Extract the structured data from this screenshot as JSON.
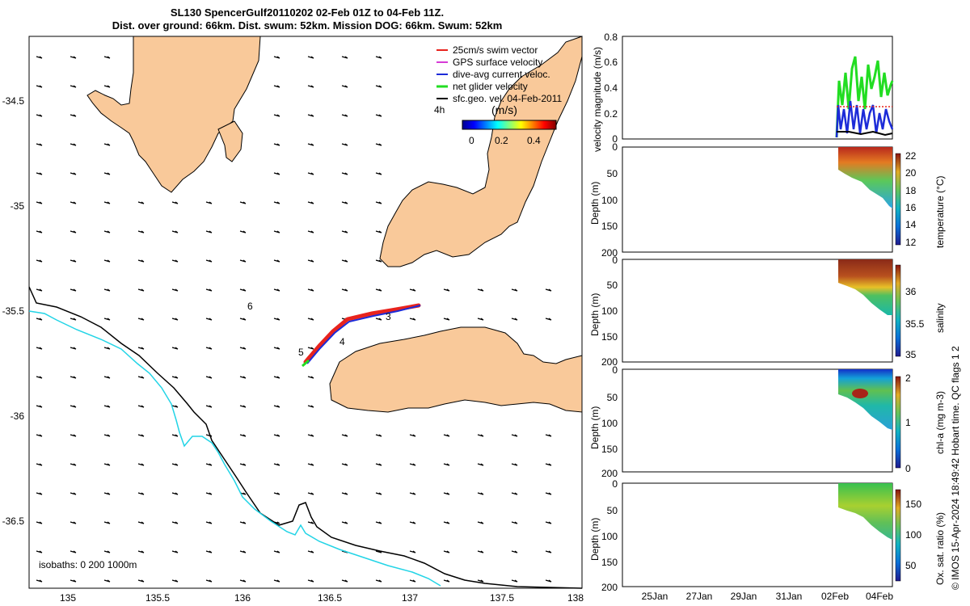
{
  "title": {
    "line1": "SL130 SpencerGulf20110202 02-Feb 01Z to 04-Feb 11Z.",
    "line2": "Dist. over ground: 66km. Dist. swum: 52km. Mission DOG: 66km. Swum: 52km"
  },
  "map": {
    "x_ticks": [
      "135",
      "135.5",
      "136",
      "136.5",
      "137",
      "137.5",
      "138"
    ],
    "y_ticks": [
      "-34.5",
      "-35",
      "-35.5",
      "-36",
      "-36.5"
    ],
    "legend": [
      {
        "label": "25cm/s swim vector",
        "color": "#e8231d"
      },
      {
        "label": "GPS surface velocity",
        "color": "#d63bd6"
      },
      {
        "label": "dive-avg current veloc.",
        "color": "#1c2bd8"
      },
      {
        "label": "net glider velocity",
        "color": "#22dd22"
      },
      {
        "label": "sfc.geo. vel. 04-Feb-2011",
        "color": "#000000"
      }
    ],
    "legend_time": "4h",
    "colorbar": {
      "unit": "(m/s)",
      "ticks": [
        "0",
        "0.2",
        "0.4"
      ]
    },
    "waypoints": [
      "3",
      "4",
      "5",
      "6"
    ],
    "isobaths_label": "isobaths: 0   200  1000m",
    "land_color": "#f9c99a",
    "contour_200_color": "#000000",
    "contour_1000_color": "#22d4e6"
  },
  "velocity_panel": {
    "ylabel": "velocity magnitude (m/s)",
    "y_ticks": [
      "0",
      "0.2",
      "0.4",
      "0.6",
      "0.8"
    ]
  },
  "profile_panels": [
    {
      "ylabel": "Depth (m)",
      "y_ticks": [
        "0",
        "50",
        "100",
        "150",
        "200"
      ],
      "cbar_label": "temperature (°C)",
      "cbar_ticks": [
        "12",
        "14",
        "16",
        "18",
        "20",
        "22"
      ]
    },
    {
      "ylabel": "Depth (m)",
      "y_ticks": [
        "0",
        "50",
        "100",
        "150",
        "200"
      ],
      "cbar_label": "salinity",
      "cbar_ticks": [
        "35",
        "35.5",
        "36"
      ]
    },
    {
      "ylabel": "Depth (m)",
      "y_ticks": [
        "0",
        "50",
        "100",
        "150",
        "200"
      ],
      "cbar_label": "chl-a (mg m-3)",
      "cbar_ticks": [
        "0",
        "1",
        "2"
      ]
    },
    {
      "ylabel": "Depth (m)",
      "y_ticks": [
        "0",
        "50",
        "100",
        "150",
        "200"
      ],
      "cbar_label": "Ox. sat. ratio (%)",
      "cbar_ticks": [
        "50",
        "100",
        "150"
      ]
    }
  ],
  "time_ticks": [
    "25Jan",
    "27Jan",
    "29Jan",
    "31Jan",
    "02Feb",
    "04Feb"
  ],
  "side_text": {
    "credit": "© IMOS 15-Apr-2024 18:49:42 Hobart time. QC flags 1  2"
  },
  "chart_data": [
    {
      "type": "scatter",
      "title": "SL130 SpencerGulf20110202 02-Feb 01Z to 04-Feb 11Z.",
      "xlim": [
        134.8,
        138.0
      ],
      "ylim": [
        -36.85,
        -34.3
      ],
      "grid": false,
      "legend_position": "top-right",
      "series": [
        {
          "name": "net glider velocity",
          "x": [
            136.42,
            136.55,
            136.68,
            136.85,
            137.05
          ],
          "y": [
            -35.76,
            -35.65,
            -35.55,
            -35.52,
            -35.49
          ]
        }
      ],
      "annotations": [
        {
          "text": "3",
          "x": 136.85,
          "y": -35.55
        },
        {
          "text": "4",
          "x": 136.58,
          "y": -35.67
        },
        {
          "text": "5",
          "x": 136.38,
          "y": -35.72
        },
        {
          "text": "6",
          "x": 136.07,
          "y": -35.5
        }
      ]
    },
    {
      "type": "line",
      "ylabel": "velocity magnitude (m/s)",
      "ylim": [
        0,
        0.8
      ],
      "x_ticks": [
        "25Jan",
        "27Jan",
        "29Jan",
        "31Jan",
        "02Feb",
        "04Feb"
      ],
      "series": [
        {
          "name": "net glider velocity",
          "values": [
            0.02,
            0.4,
            0.3,
            0.62,
            0.35,
            0.55,
            0.4,
            0.65,
            0.38,
            0.45,
            0.4,
            0.42
          ]
        },
        {
          "name": "dive-avg current veloc.",
          "values": [
            0.02,
            0.25,
            0.1,
            0.28,
            0.08,
            0.22,
            0.12,
            0.3,
            0.1,
            0.2,
            0.12,
            0.15
          ]
        },
        {
          "name": "25cm/s swim vector",
          "values": [
            0.25,
            0.25,
            0.25,
            0.25,
            0.25,
            0.25,
            0.25,
            0.25,
            0.25,
            0.25,
            0.25,
            0.25
          ]
        },
        {
          "name": "GPS surface velocity",
          "values": [
            0.05,
            0.05,
            0.06,
            0.04,
            0.05,
            0.05,
            0.06,
            0.05,
            0.04,
            0.05,
            0.05,
            0.05
          ]
        }
      ]
    },
    {
      "type": "heatmap",
      "ylabel": "Depth (m)",
      "ylim": [
        200,
        0
      ],
      "colorbar_label": "temperature (°C)",
      "colorbar_range": [
        12,
        22
      ]
    },
    {
      "type": "heatmap",
      "ylabel": "Depth (m)",
      "ylim": [
        200,
        0
      ],
      "colorbar_label": "salinity",
      "colorbar_range": [
        35,
        36.3
      ]
    },
    {
      "type": "heatmap",
      "ylabel": "Depth (m)",
      "ylim": [
        200,
        0
      ],
      "colorbar_label": "chl-a (mg m-3)",
      "colorbar_range": [
        0,
        2
      ]
    },
    {
      "type": "heatmap",
      "ylabel": "Depth (m)",
      "ylim": [
        200,
        0
      ],
      "colorbar_label": "Ox. sat. ratio (%)",
      "colorbar_range": [
        25,
        175
      ]
    }
  ]
}
